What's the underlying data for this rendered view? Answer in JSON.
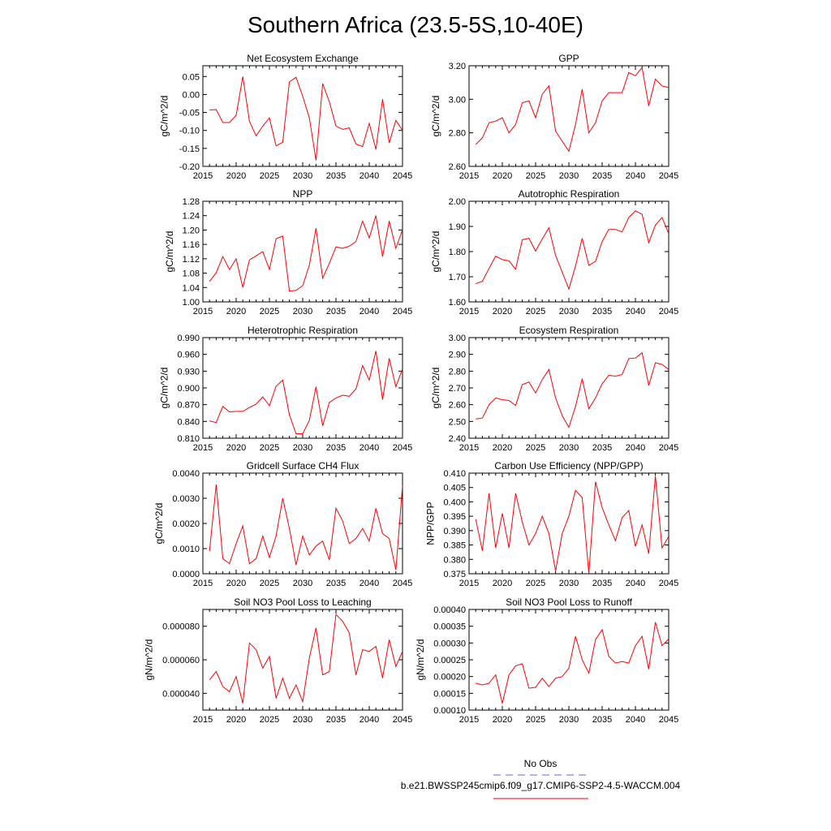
{
  "figure": {
    "title": "Southern Africa (23.5-5S,10-40E)",
    "line_color": "#ff0000",
    "obs_color": "#6666cc"
  },
  "legend": {
    "items": [
      {
        "label": "No Obs",
        "style": "dashed",
        "color": "#6666cc"
      },
      {
        "label": "b.e21.BWSSP245cmip6.f09_g17.CMIP6-SSP2-4.5-WACCM.004",
        "style": "solid",
        "color": "#ff0000"
      }
    ]
  },
  "chart_data": [
    {
      "type": "line",
      "title": "Net Ecosystem Exchange",
      "ylabel": "gC/m^2/d",
      "xlim": [
        2015,
        2045
      ],
      "ylim": [
        -0.2,
        0.08
      ],
      "xticks": [
        "2015",
        "2020",
        "2025",
        "2030",
        "2035",
        "2040",
        "2045"
      ],
      "yticks": [
        "0.05",
        "0.00",
        "-0.05",
        "-0.10",
        "-0.15",
        "-0.20"
      ],
      "x": [
        2016,
        2017,
        2018,
        2019,
        2020,
        2021,
        2022,
        2023,
        2024,
        2025,
        2026,
        2027,
        2028,
        2029,
        2030,
        2031,
        2032,
        2033,
        2034,
        2035,
        2036,
        2037,
        2038,
        2039,
        2040,
        2041,
        2042,
        2043,
        2044,
        2045
      ],
      "values": [
        -0.043,
        -0.042,
        -0.078,
        -0.078,
        -0.058,
        0.05,
        -0.075,
        -0.115,
        -0.088,
        -0.065,
        -0.143,
        -0.133,
        0.035,
        0.048,
        -0.005,
        -0.065,
        -0.183,
        0.03,
        -0.02,
        -0.088,
        -0.097,
        -0.093,
        -0.138,
        -0.145,
        -0.08,
        -0.153,
        -0.013,
        -0.135,
        -0.072,
        -0.1
      ]
    },
    {
      "type": "line",
      "title": "GPP",
      "ylabel": "gC/m^2/d",
      "xlim": [
        2015,
        2045
      ],
      "ylim": [
        2.6,
        3.2
      ],
      "xticks": [
        "2015",
        "2020",
        "2025",
        "2030",
        "2035",
        "2040",
        "2045"
      ],
      "yticks": [
        "3.20",
        "3.00",
        "2.80",
        "2.60"
      ],
      "x": [
        2016,
        2017,
        2018,
        2019,
        2020,
        2021,
        2022,
        2023,
        2024,
        2025,
        2026,
        2027,
        2028,
        2029,
        2030,
        2031,
        2032,
        2033,
        2034,
        2035,
        2036,
        2037,
        2038,
        2039,
        2040,
        2041,
        2042,
        2043,
        2044,
        2045
      ],
      "values": [
        2.73,
        2.77,
        2.86,
        2.87,
        2.89,
        2.8,
        2.85,
        2.98,
        2.99,
        2.89,
        3.03,
        3.08,
        2.81,
        2.75,
        2.69,
        2.85,
        3.06,
        2.8,
        2.86,
        2.99,
        3.04,
        3.04,
        3.04,
        3.16,
        3.14,
        3.19,
        2.96,
        3.12,
        3.08,
        3.07
      ]
    },
    {
      "type": "line",
      "title": "NPP",
      "ylabel": "gC/m^2/d",
      "xlim": [
        2015,
        2045
      ],
      "ylim": [
        1.0,
        1.28
      ],
      "xticks": [
        "2015",
        "2020",
        "2025",
        "2030",
        "2035",
        "2040",
        "2045"
      ],
      "yticks": [
        "1.28",
        "1.24",
        "1.20",
        "1.16",
        "1.12",
        "1.08",
        "1.04",
        "1.00"
      ],
      "x": [
        2016,
        2017,
        2018,
        2019,
        2020,
        2021,
        2022,
        2023,
        2024,
        2025,
        2026,
        2027,
        2028,
        2029,
        2030,
        2031,
        2032,
        2033,
        2034,
        2035,
        2036,
        2037,
        2038,
        2039,
        2040,
        2041,
        2042,
        2043,
        2044,
        2045
      ],
      "values": [
        1.057,
        1.081,
        1.126,
        1.09,
        1.12,
        1.04,
        1.117,
        1.128,
        1.14,
        1.09,
        1.176,
        1.183,
        1.03,
        1.032,
        1.045,
        1.102,
        1.205,
        1.066,
        1.107,
        1.153,
        1.149,
        1.155,
        1.168,
        1.225,
        1.178,
        1.24,
        1.126,
        1.225,
        1.149,
        1.201
      ]
    },
    {
      "type": "line",
      "title": "Autotrophic Respiration",
      "ylabel": "gC/m^2/d",
      "xlim": [
        2015,
        2045
      ],
      "ylim": [
        1.6,
        2.0
      ],
      "xticks": [
        "2015",
        "2020",
        "2025",
        "2030",
        "2035",
        "2040",
        "2045"
      ],
      "yticks": [
        "2.00",
        "1.90",
        "1.80",
        "1.70",
        "1.60"
      ],
      "x": [
        2016,
        2017,
        2018,
        2019,
        2020,
        2021,
        2022,
        2023,
        2024,
        2025,
        2026,
        2027,
        2028,
        2029,
        2030,
        2031,
        2032,
        2033,
        2034,
        2035,
        2036,
        2037,
        2038,
        2039,
        2040,
        2041,
        2042,
        2043,
        2044,
        2045
      ],
      "values": [
        1.672,
        1.682,
        1.733,
        1.782,
        1.768,
        1.763,
        1.73,
        1.847,
        1.853,
        1.802,
        1.85,
        1.895,
        1.785,
        1.718,
        1.651,
        1.743,
        1.853,
        1.745,
        1.761,
        1.84,
        1.888,
        1.888,
        1.878,
        1.935,
        1.962,
        1.948,
        1.835,
        1.905,
        1.935,
        1.872
      ]
    },
    {
      "type": "line",
      "title": "Heterotrophic Respiration",
      "ylabel": "gC/m^2/d",
      "xlim": [
        2015,
        2045
      ],
      "ylim": [
        0.81,
        0.99
      ],
      "xticks": [
        "2015",
        "2020",
        "2025",
        "2030",
        "2035",
        "2040",
        "2045"
      ],
      "yticks": [
        "0.990",
        "0.960",
        "0.930",
        "0.900",
        "0.870",
        "0.840",
        "0.810"
      ],
      "x": [
        2016,
        2017,
        2018,
        2019,
        2020,
        2021,
        2022,
        2023,
        2024,
        2025,
        2026,
        2027,
        2028,
        2029,
        2030,
        2031,
        2032,
        2033,
        2034,
        2035,
        2036,
        2037,
        2038,
        2039,
        2040,
        2041,
        2042,
        2043,
        2044,
        2045
      ],
      "values": [
        0.841,
        0.838,
        0.867,
        0.857,
        0.858,
        0.858,
        0.865,
        0.871,
        0.884,
        0.868,
        0.903,
        0.914,
        0.852,
        0.818,
        0.818,
        0.842,
        0.902,
        0.832,
        0.874,
        0.882,
        0.887,
        0.885,
        0.898,
        0.94,
        0.914,
        0.966,
        0.879,
        0.953,
        0.902,
        0.934
      ]
    },
    {
      "type": "line",
      "title": "Ecosystem Respiration",
      "ylabel": "gC/m^2/d",
      "xlim": [
        2015,
        2045
      ],
      "ylim": [
        2.4,
        3.0
      ],
      "xticks": [
        "2015",
        "2020",
        "2025",
        "2030",
        "2035",
        "2040",
        "2045"
      ],
      "yticks": [
        "3.00",
        "2.90",
        "2.80",
        "2.70",
        "2.60",
        "2.50",
        "2.40"
      ],
      "x": [
        2016,
        2017,
        2018,
        2019,
        2020,
        2021,
        2022,
        2023,
        2024,
        2025,
        2026,
        2027,
        2028,
        2029,
        2030,
        2031,
        2032,
        2033,
        2034,
        2035,
        2036,
        2037,
        2038,
        2039,
        2040,
        2041,
        2042,
        2043,
        2044,
        2045
      ],
      "values": [
        2.515,
        2.52,
        2.6,
        2.64,
        2.63,
        2.625,
        2.595,
        2.72,
        2.735,
        2.67,
        2.75,
        2.81,
        2.64,
        2.535,
        2.465,
        2.59,
        2.755,
        2.575,
        2.64,
        2.725,
        2.775,
        2.77,
        2.78,
        2.875,
        2.878,
        2.91,
        2.715,
        2.85,
        2.84,
        2.81
      ]
    },
    {
      "type": "line",
      "title": "Gridcell Surface CH4 Flux",
      "ylabel": "gC/m^2/d",
      "xlim": [
        2015,
        2045
      ],
      "ylim": [
        0.0,
        0.004
      ],
      "xticks": [
        "2015",
        "2020",
        "2025",
        "2030",
        "2035",
        "2040",
        "2045"
      ],
      "yticks": [
        "0.0040",
        "0.0030",
        "0.0020",
        "0.0010",
        "0.0000"
      ],
      "x": [
        2016,
        2017,
        2018,
        2019,
        2020,
        2021,
        2022,
        2023,
        2024,
        2025,
        2026,
        2027,
        2028,
        2029,
        2030,
        2031,
        2032,
        2033,
        2034,
        2035,
        2036,
        2037,
        2038,
        2039,
        2040,
        2041,
        2042,
        2043,
        2044,
        2045
      ],
      "values": [
        0.0009,
        0.00355,
        0.0006,
        0.0004,
        0.0012,
        0.0019,
        0.0004,
        0.0006,
        0.0015,
        0.00065,
        0.0015,
        0.003,
        0.0018,
        0.00035,
        0.0015,
        0.00075,
        0.0011,
        0.0013,
        0.00055,
        0.0026,
        0.0021,
        0.0012,
        0.0014,
        0.0018,
        0.0013,
        0.0026,
        0.0016,
        0.0014,
        0.00015,
        0.0035
      ]
    },
    {
      "type": "line",
      "title": "Carbon Use Efficiency (NPP/GPP)",
      "ylabel": "NPP/GPP",
      "xlim": [
        2015,
        2045
      ],
      "ylim": [
        0.375,
        0.41
      ],
      "xticks": [
        "2015",
        "2020",
        "2025",
        "2030",
        "2035",
        "2040",
        "2045"
      ],
      "yticks": [
        "0.410",
        "0.405",
        "0.400",
        "0.395",
        "0.390",
        "0.385",
        "0.380",
        "0.375"
      ],
      "x": [
        2016,
        2017,
        2018,
        2019,
        2020,
        2021,
        2022,
        2023,
        2024,
        2025,
        2026,
        2027,
        2028,
        2029,
        2030,
        2031,
        2032,
        2033,
        2034,
        2035,
        2036,
        2037,
        2038,
        2039,
        2040,
        2041,
        2042,
        2043,
        2044,
        2045
      ],
      "values": [
        0.394,
        0.383,
        0.403,
        0.384,
        0.396,
        0.384,
        0.403,
        0.393,
        0.385,
        0.389,
        0.395,
        0.389,
        0.376,
        0.389,
        0.395,
        0.404,
        0.4015,
        0.375,
        0.407,
        0.398,
        0.392,
        0.3865,
        0.3945,
        0.397,
        0.3845,
        0.392,
        0.382,
        0.409,
        0.384,
        0.388
      ]
    },
    {
      "type": "line",
      "title": "Soil NO3 Pool Loss to Leaching",
      "ylabel": "gN/m^2/d",
      "xlim": [
        2015,
        2045
      ],
      "ylim": [
        3e-05,
        9e-05
      ],
      "xticks": [
        "2015",
        "2020",
        "2025",
        "2030",
        "2035",
        "2040",
        "2045"
      ],
      "yticks": [
        "0.000080",
        "0.000060",
        "0.000040"
      ],
      "x": [
        2016,
        2017,
        2018,
        2019,
        2020,
        2021,
        2022,
        2023,
        2024,
        2025,
        2026,
        2027,
        2028,
        2029,
        2030,
        2031,
        2032,
        2033,
        2034,
        2035,
        2036,
        2037,
        2038,
        2039,
        2040,
        2041,
        2042,
        2043,
        2044,
        2045
      ],
      "values": [
        4.8e-05,
        5.3e-05,
        4.4e-05,
        4.1e-05,
        5e-05,
        3.4e-05,
        7e-05,
        6.6e-05,
        5.5e-05,
        6.2e-05,
        3.7e-05,
        4.9e-05,
        3.7e-05,
        4.5e-05,
        3.5e-05,
        6.1e-05,
        7.9e-05,
        5.1e-05,
        5.3e-05,
        8.7e-05,
        8.3e-05,
        7.6e-05,
        5.1e-05,
        6.6e-05,
        6.5e-05,
        6.8e-05,
        4.9e-05,
        7.2e-05,
        5.6e-05,
        6.5e-05
      ]
    },
    {
      "type": "line",
      "title": "Soil NO3 Pool Loss to Runoff",
      "ylabel": "gN/m^2/d",
      "xlim": [
        2015,
        2045
      ],
      "ylim": [
        0.0001,
        0.0004
      ],
      "xticks": [
        "2015",
        "2020",
        "2025",
        "2030",
        "2035",
        "2040",
        "2045"
      ],
      "yticks": [
        "0.00040",
        "0.00035",
        "0.00030",
        "0.00025",
        "0.00020",
        "0.00015",
        "0.00010"
      ],
      "x": [
        2016,
        2017,
        2018,
        2019,
        2020,
        2021,
        2022,
        2023,
        2024,
        2025,
        2026,
        2027,
        2028,
        2029,
        2030,
        2031,
        2032,
        2033,
        2034,
        2035,
        2036,
        2037,
        2038,
        2039,
        2040,
        2041,
        2042,
        2043,
        2044,
        2045
      ],
      "values": [
        0.00018,
        0.000175,
        0.00018,
        0.000205,
        0.00012,
        0.000205,
        0.000232,
        0.000238,
        0.000165,
        0.000168,
        0.000195,
        0.00017,
        0.000195,
        0.0002,
        0.000225,
        0.00032,
        0.00025,
        0.00021,
        0.00031,
        0.00034,
        0.00026,
        0.00024,
        0.000245,
        0.00024,
        0.000292,
        0.00032,
        0.000222,
        0.000362,
        0.000292,
        0.000312
      ]
    }
  ]
}
